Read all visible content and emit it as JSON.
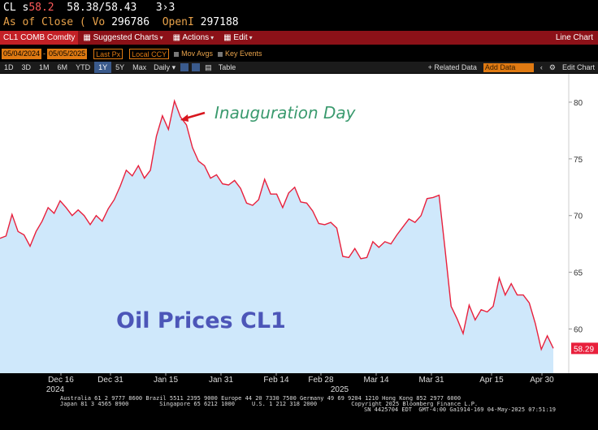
{
  "quote": {
    "ticker": "CL s",
    "last": "58.2",
    "bid_ask": "58.38/58.43",
    "size": "3›3",
    "as_of_label": "As of Close",
    "volume_label": "( Vo",
    "volume": "296786",
    "open_interest_label": "OpenI",
    "open_interest": "297188"
  },
  "toolbar": {
    "security": "CL1 COMB Comdty",
    "suggested_charts": "Suggested Charts",
    "actions": "Actions",
    "edit": "Edit",
    "chart_type": "Line Chart",
    "caret": "▾"
  },
  "controls": {
    "start_date": "05/04/2024",
    "end_date": "05/05/2025",
    "dash": "-",
    "price_field": "Last Px",
    "currency": "Local CCY",
    "mov_avgs": "Mov Avgs",
    "key_events": "Key Events"
  },
  "ranges": {
    "items": [
      "1D",
      "3D",
      "1M",
      "6M",
      "YTD",
      "1Y",
      "5Y",
      "Max"
    ],
    "active": "1Y",
    "period": "Daily",
    "table": "Table",
    "related_data": "+ Related Data",
    "add_data": "Add Data",
    "edit_chart": "Edit Chart"
  },
  "chart_data": {
    "type": "area",
    "title": "Oil Prices CL1",
    "annotation": "Inauguration Day",
    "last_value_label": "58.29",
    "ylim": [
      56.1,
      82.5
    ],
    "y_ticks": [
      "60",
      "65",
      "70",
      "75",
      "80"
    ],
    "x_ticks": [
      "Dec 16",
      "Dec 31",
      "Jan 15",
      "Jan 31",
      "Feb 14",
      "Feb 28",
      "Mar 14",
      "Mar 31",
      "Apr 15",
      "Apr 30"
    ],
    "year_labels": [
      "2024",
      "2025"
    ],
    "series": [
      {
        "values": [
          68.0,
          68.2,
          70.1,
          68.6,
          68.3,
          67.3,
          68.6,
          69.5,
          70.7,
          70.2,
          71.3,
          70.7,
          70.0,
          70.5,
          70.0,
          69.2,
          70.0,
          69.5,
          70.6,
          71.4,
          72.6,
          74.0,
          73.5,
          74.4,
          73.3,
          74.0,
          77.0,
          78.8,
          77.6,
          80.1,
          78.7,
          78.0,
          76.0,
          74.8,
          74.4,
          73.3,
          73.6,
          72.8,
          72.7,
          73.1,
          72.4,
          71.1,
          70.9,
          71.4,
          73.2,
          71.9,
          71.9,
          70.7,
          72.0,
          72.5,
          71.2,
          71.1,
          70.4,
          69.3,
          69.2,
          69.4,
          68.9,
          66.4,
          66.3,
          67.1,
          66.2,
          66.3,
          67.7,
          67.2,
          67.7,
          67.5,
          68.3,
          69.0,
          69.7,
          69.4,
          70.0,
          71.5,
          71.6,
          71.8,
          67.0,
          62.0,
          60.9,
          59.6,
          62.1,
          60.8,
          61.7,
          61.5,
          62.0,
          64.5,
          63.0,
          64.0,
          63.0,
          63.0,
          62.3,
          60.5,
          58.2,
          59.4,
          58.3
        ]
      }
    ]
  },
  "footer": {
    "line1": "Australia 61 2 9777 8600 Brazil 5511 2395 9000 Europe 44 20 7330 7500 Germany 49 69 9204 1210 Hong Kong 852 2977 6000",
    "line2": "Japan 81 3 4565 8900         Singapore 65 6212 1000     U.S. 1 212 318 2000          Copyright 2025 Bloomberg Finance L.P.",
    "line3": "SN 4425704 EDT  GMT-4:00 Ga1914-169 04-May-2025 07:51:19"
  }
}
